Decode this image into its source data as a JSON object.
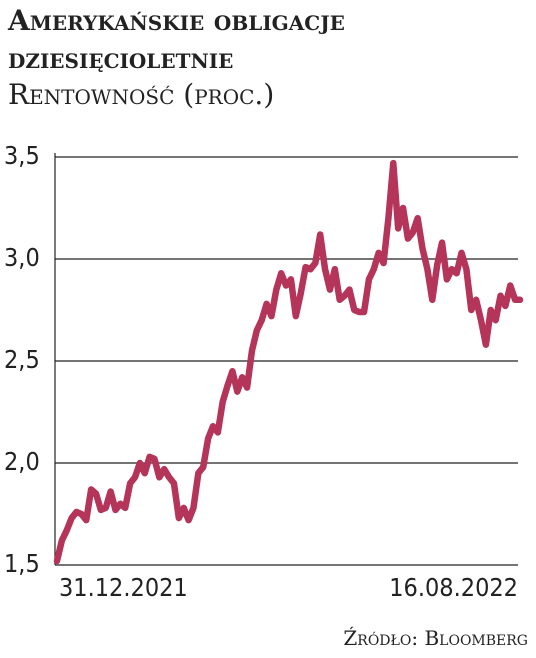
{
  "chart_data": {
    "type": "line",
    "title": "Amerykańskie obligacje dziesięcioletnie",
    "subtitle": "Rentowność (proc.)",
    "source": "Źródło: Bloomberg",
    "categories": [
      "31.12.2021",
      null,
      null,
      null,
      null,
      null,
      null,
      null,
      null,
      null,
      null,
      null,
      null,
      null,
      null,
      null,
      null,
      null,
      null,
      null,
      null,
      null,
      null,
      null,
      null,
      null,
      null,
      null,
      null,
      null,
      null,
      null,
      null,
      null,
      null,
      null,
      null,
      null,
      null,
      null,
      null,
      null,
      null,
      null,
      null,
      null,
      null,
      null,
      null,
      null,
      null,
      null,
      null,
      null,
      null,
      null,
      null,
      null,
      null,
      null,
      null,
      null,
      null,
      null,
      null,
      null,
      null,
      null,
      null,
      null,
      null,
      null,
      null,
      null,
      null,
      null,
      null,
      null,
      null,
      null,
      null,
      null,
      null,
      null,
      null,
      null,
      null,
      null,
      null,
      null,
      null,
      null,
      null,
      null,
      null,
      "16.08.2022"
    ],
    "values": [
      1.52,
      1.62,
      1.67,
      1.73,
      1.76,
      1.75,
      1.72,
      1.87,
      1.85,
      1.77,
      1.78,
      1.86,
      1.77,
      1.8,
      1.78,
      1.9,
      1.93,
      2.0,
      1.95,
      2.03,
      2.02,
      1.93,
      1.97,
      1.93,
      1.9,
      1.73,
      1.78,
      1.72,
      1.78,
      1.95,
      1.98,
      2.12,
      2.18,
      2.15,
      2.3,
      2.38,
      2.45,
      2.35,
      2.42,
      2.37,
      2.55,
      2.65,
      2.7,
      2.78,
      2.72,
      2.85,
      2.93,
      2.87,
      2.9,
      2.72,
      2.83,
      2.96,
      2.95,
      2.98,
      3.12,
      2.95,
      2.85,
      2.95,
      2.8,
      2.82,
      2.85,
      2.75,
      2.74,
      2.74,
      2.9,
      2.95,
      3.03,
      2.98,
      3.2,
      3.47,
      3.15,
      3.25,
      3.1,
      3.13,
      3.2,
      3.05,
      2.95,
      2.8,
      2.97,
      3.08,
      2.9,
      2.95,
      2.93,
      3.03,
      2.95,
      2.75,
      2.8,
      2.7,
      2.58,
      2.75,
      2.7,
      2.82,
      2.77,
      2.87,
      2.8,
      2.8
    ],
    "color": "#b5345a",
    "ylim": [
      1.5,
      3.5
    ],
    "yticks": [
      {
        "value": 1.5,
        "label": "1,5"
      },
      {
        "value": 2.0,
        "label": "2,0"
      },
      {
        "value": 2.5,
        "label": "2,5"
      },
      {
        "value": 3.0,
        "label": "3,0"
      },
      {
        "value": 3.5,
        "label": "3,5"
      }
    ],
    "grid": true
  }
}
